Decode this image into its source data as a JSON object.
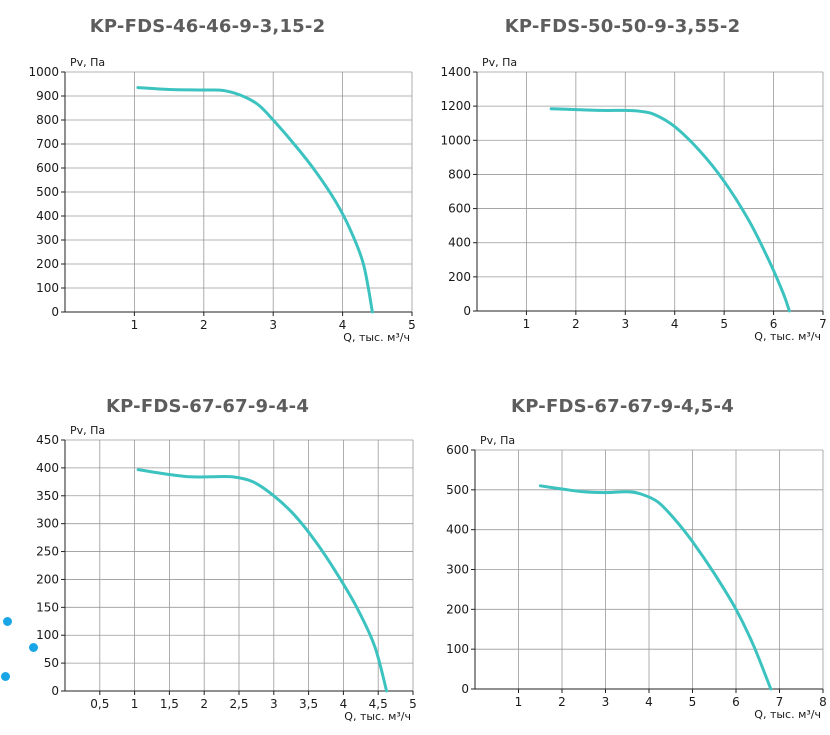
{
  "chart_data": [
    {
      "type": "line",
      "title": "KP-FDS-46-46-9-3,15-2",
      "ylabel": "Pv, Па",
      "xlabel": "Q, тыс. м³/ч",
      "xlim": [
        0,
        5
      ],
      "ylim": [
        0,
        1000
      ],
      "xticks": [
        1,
        2,
        3,
        4,
        5
      ],
      "xtick_labels": [
        "1",
        "2",
        "3",
        "4",
        "5"
      ],
      "yticks": [
        0,
        100,
        200,
        300,
        400,
        500,
        600,
        700,
        800,
        900,
        1000
      ],
      "ytick_labels": [
        "0",
        "100",
        "200",
        "300",
        "400",
        "500",
        "600",
        "700",
        "800",
        "900",
        "1000"
      ],
      "grid": true,
      "series": [
        {
          "color": "#3cc3c0",
          "x": [
            1.05,
            1.5,
            2.0,
            2.3,
            2.6,
            2.8,
            3.0,
            3.3,
            3.6,
            3.9,
            4.1,
            4.3,
            4.43
          ],
          "y": [
            935,
            927,
            925,
            922,
            895,
            860,
            800,
            700,
            590,
            460,
            350,
            200,
            0
          ]
        }
      ]
    },
    {
      "type": "line",
      "title": "KP-FDS-50-50-9-3,55-2",
      "ylabel": "Pv, Па",
      "xlabel": "Q, тыс. м³/ч",
      "xlim": [
        0,
        7
      ],
      "ylim": [
        0,
        1400
      ],
      "xticks": [
        1,
        2,
        3,
        4,
        5,
        6,
        7
      ],
      "xtick_labels": [
        "1",
        "2",
        "3",
        "4",
        "5",
        "6",
        "7"
      ],
      "yticks": [
        0,
        200,
        400,
        600,
        800,
        1000,
        1200,
        1400
      ],
      "ytick_labels": [
        "0",
        "200",
        "400",
        "600",
        "800",
        "1000",
        "1200",
        "1400"
      ],
      "grid": true,
      "series": [
        {
          "color": "#3cc3c0",
          "x": [
            1.5,
            2.0,
            2.5,
            3.0,
            3.3,
            3.6,
            4.0,
            4.5,
            5.0,
            5.5,
            5.9,
            6.2,
            6.32
          ],
          "y": [
            1185,
            1180,
            1175,
            1175,
            1170,
            1150,
            1080,
            940,
            760,
            530,
            300,
            100,
            0
          ]
        }
      ]
    },
    {
      "type": "line",
      "title": "KP-FDS-67-67-9-4-4",
      "ylabel": "Pv, Па",
      "xlabel": "Q, тыс. м³/ч",
      "xlim": [
        0,
        5
      ],
      "ylim": [
        0,
        450
      ],
      "xticks": [
        0.5,
        1,
        1.5,
        2,
        2.5,
        3,
        3.5,
        4,
        4.5,
        5
      ],
      "xtick_labels": [
        "0,5",
        "1",
        "1,5",
        "2",
        "2,5",
        "3",
        "3,5",
        "4",
        "4,5",
        "5"
      ],
      "yticks": [
        0,
        50,
        100,
        150,
        200,
        250,
        300,
        350,
        400,
        450
      ],
      "ytick_labels": [
        "0",
        "50",
        "100",
        "150",
        "200",
        "250",
        "300",
        "350",
        "400",
        "450"
      ],
      "grid": true,
      "series": [
        {
          "color": "#3cc3c0",
          "x": [
            1.05,
            1.4,
            1.8,
            2.1,
            2.4,
            2.7,
            3.0,
            3.3,
            3.6,
            3.9,
            4.2,
            4.45,
            4.62
          ],
          "y": [
            397,
            390,
            384,
            384,
            384,
            375,
            350,
            315,
            268,
            212,
            148,
            80,
            0
          ]
        }
      ]
    },
    {
      "type": "line",
      "title": "KP-FDS-67-67-9-4,5-4",
      "ylabel": "Pv, Па",
      "xlabel": "Q, тыс. м³/ч",
      "xlim": [
        0,
        8
      ],
      "ylim": [
        0,
        600
      ],
      "xticks": [
        1,
        2,
        3,
        4,
        5,
        6,
        7,
        8
      ],
      "xtick_labels": [
        "1",
        "2",
        "3",
        "4",
        "5",
        "6",
        "7",
        "8"
      ],
      "yticks": [
        0,
        100,
        200,
        300,
        400,
        500,
        600
      ],
      "ytick_labels": [
        "0",
        "100",
        "200",
        "300",
        "400",
        "500",
        "600"
      ],
      "grid": true,
      "series": [
        {
          "color": "#3cc3c0",
          "x": [
            1.5,
            2.0,
            2.5,
            3.0,
            3.5,
            3.8,
            4.2,
            4.6,
            5.0,
            5.5,
            6.0,
            6.4,
            6.8
          ],
          "y": [
            510,
            502,
            495,
            493,
            495,
            490,
            470,
            425,
            370,
            290,
            200,
            110,
            0
          ]
        }
      ]
    }
  ]
}
